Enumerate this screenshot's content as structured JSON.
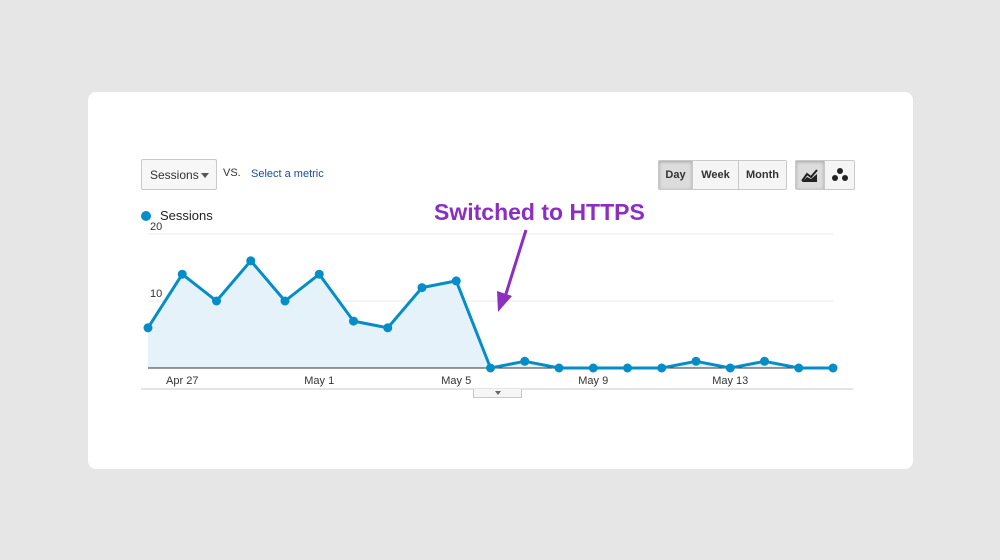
{
  "controls": {
    "metric_select": "Sessions",
    "vs_label": "VS.",
    "select_metric_link": "Select a metric",
    "periods": [
      "Day",
      "Week",
      "Month"
    ],
    "active_period": "Day",
    "chart_modes": [
      "line-chart-icon",
      "motion-chart-icon"
    ]
  },
  "annotation": {
    "text": "Switched to HTTPS",
    "color": "#8b2fc0"
  },
  "colors": {
    "series": "#058dc7",
    "fill": "#e5f2fa"
  },
  "chart_data": {
    "type": "area",
    "title": "",
    "legend": {
      "entries": [
        "Sessions"
      ],
      "placement": "top-left"
    },
    "ylim": [
      0,
      20
    ],
    "yticks": [
      10,
      20
    ],
    "grid": true,
    "x": [
      "Apr 26",
      "Apr 27",
      "Apr 28",
      "Apr 29",
      "Apr 30",
      "May 1",
      "May 2",
      "May 3",
      "May 4",
      "May 5",
      "May 6",
      "May 7",
      "May 8",
      "May 9",
      "May 10",
      "May 11",
      "May 12",
      "May 13",
      "May 14",
      "May 15",
      "May 16"
    ],
    "xticks": [
      "Apr 27",
      "May 1",
      "May 5",
      "May 9",
      "May 13"
    ],
    "series": [
      {
        "name": "Sessions",
        "values": [
          6,
          14,
          10,
          16,
          10,
          14,
          7,
          6,
          12,
          13,
          0,
          1,
          0,
          0,
          0,
          0,
          1,
          0,
          1,
          0,
          0
        ]
      }
    ]
  }
}
